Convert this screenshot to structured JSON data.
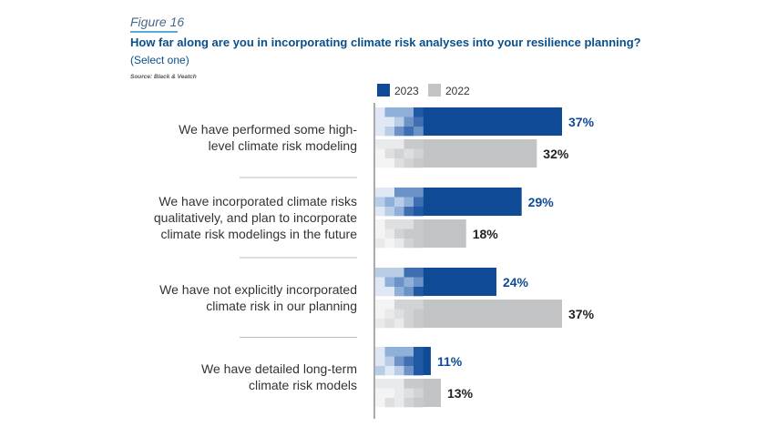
{
  "figure_label": "Figure 16",
  "title": "How far along are you in incorporating climate risk analyses into your resilience planning?",
  "subtitle": "(Select one)",
  "source": "Source: Black & Veatch",
  "colors": {
    "y2023": "#0f4a96",
    "y2022": "#c2c3c5",
    "label2023": "#0f4a96",
    "label2022": "#222222",
    "category": "#333333"
  },
  "chart_data": {
    "type": "bar",
    "orientation": "horizontal",
    "title": "How far along are you in incorporating climate risk analyses into your resilience planning?",
    "xlim": [
      0,
      37
    ],
    "legend": [
      "2023",
      "2022"
    ],
    "legend_position": "top",
    "categories": [
      [
        "We have performed some high-",
        "level climate risk modeling"
      ],
      [
        "We have incorporated climate risks",
        "qualitatively, and plan to incorporate",
        "climate risk modelings in the future"
      ],
      [
        "We have not explicitly incorporated",
        "climate risk in our planning"
      ],
      [
        "We have detailed long-term",
        "climate risk models"
      ]
    ],
    "series": [
      {
        "name": "2023",
        "values": [
          37,
          29,
          24,
          11
        ],
        "labels": [
          "37%",
          "29%",
          "24%",
          "11%"
        ]
      },
      {
        "name": "2022",
        "values": [
          32,
          18,
          37,
          13
        ],
        "labels": [
          "32%",
          "18%",
          "37%",
          "13%"
        ]
      }
    ]
  }
}
